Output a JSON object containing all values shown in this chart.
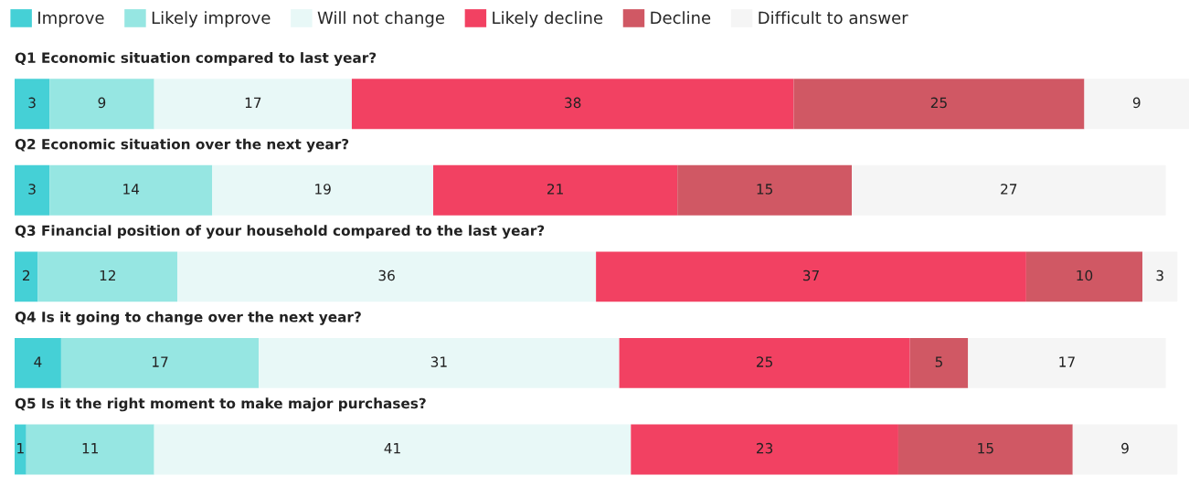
{
  "chart_data": {
    "type": "bar",
    "orientation": "horizontal",
    "stacked": true,
    "data_labels": true,
    "legend": "top left",
    "categories": [
      "Q1 Economic situation compared to last year?",
      "Q2 Economic situation over the next year?",
      "Q3 Financial position of your household compared to the last year?",
      "Q4 Is it going to change over the next year?",
      "Q5 Is it the right moment to make major purchases?"
    ],
    "series": [
      {
        "name": "Improve",
        "color": "#45d0d6",
        "values": [
          3,
          3,
          2,
          4,
          1
        ]
      },
      {
        "name": "Likely improve",
        "color": "#96e6e2",
        "values": [
          9,
          14,
          12,
          17,
          11
        ]
      },
      {
        "name": "Will not change",
        "color": "#e8f8f7",
        "values": [
          17,
          19,
          36,
          31,
          41
        ]
      },
      {
        "name": "Likely decline",
        "color": "#f24162",
        "values": [
          38,
          21,
          37,
          25,
          23
        ]
      },
      {
        "name": "Decline",
        "color": "#d05864",
        "values": [
          25,
          15,
          10,
          5,
          15
        ]
      },
      {
        "name": "Difficult to answer",
        "color": "#f5f5f5",
        "values": [
          9,
          27,
          3,
          17,
          9
        ]
      }
    ]
  }
}
